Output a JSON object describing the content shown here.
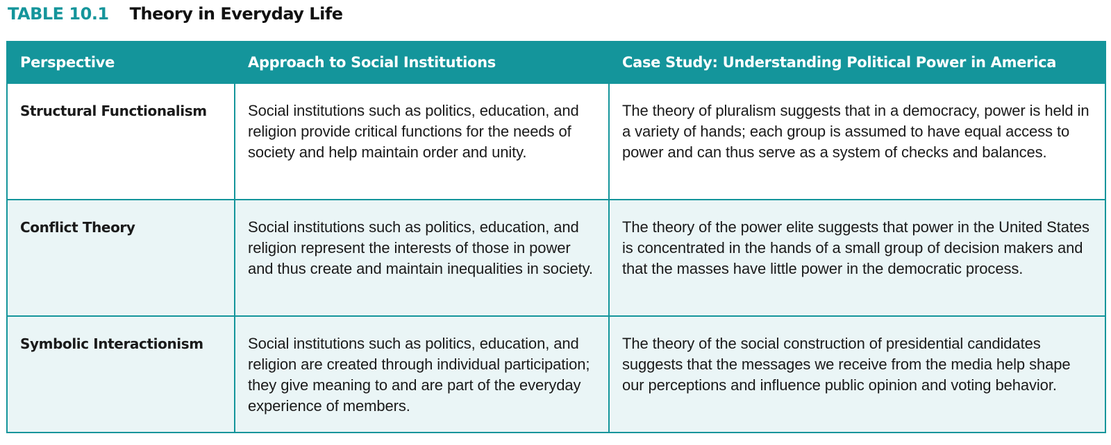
{
  "caption": {
    "label": "TABLE 10.1",
    "title": "Theory in Everyday Life"
  },
  "colors": {
    "accent": "#14959b",
    "alt_row": "#eaf5f6",
    "text": "#1a1a1a"
  },
  "table": {
    "headers": [
      "Perspective",
      "Approach to Social Institutions",
      "Case Study: Understanding Political Power in America"
    ],
    "rows": [
      {
        "perspective": "Structural Functionalism",
        "approach": "Social institutions such as politics, education, and religion provide critical functions for the needs of society and help maintain order and unity.",
        "case_study": "The theory of pluralism suggests that in a democracy, power is held in a variety of hands; each group is assumed to have equal access to power and can thus serve as a system of checks and balances."
      },
      {
        "perspective": "Conflict Theory",
        "approach": "Social institutions such as politics, education, and religion represent the interests of those in power and thus create and maintain inequalities in society.",
        "case_study": "The theory of the power elite suggests that power in the United States is concentrated in the hands of a small group of decision makers and that the masses have little power in the democratic process."
      },
      {
        "perspective": "Symbolic Interactionism",
        "approach": "Social institutions such as politics, education, and religion are created through individual participation; they give meaning to and are part of the everyday experience of members.",
        "case_study": "The theory of the social construction of presidential candidates suggests that the messages we receive from the media help shape our perceptions and influence public opinion and voting behavior."
      }
    ]
  }
}
